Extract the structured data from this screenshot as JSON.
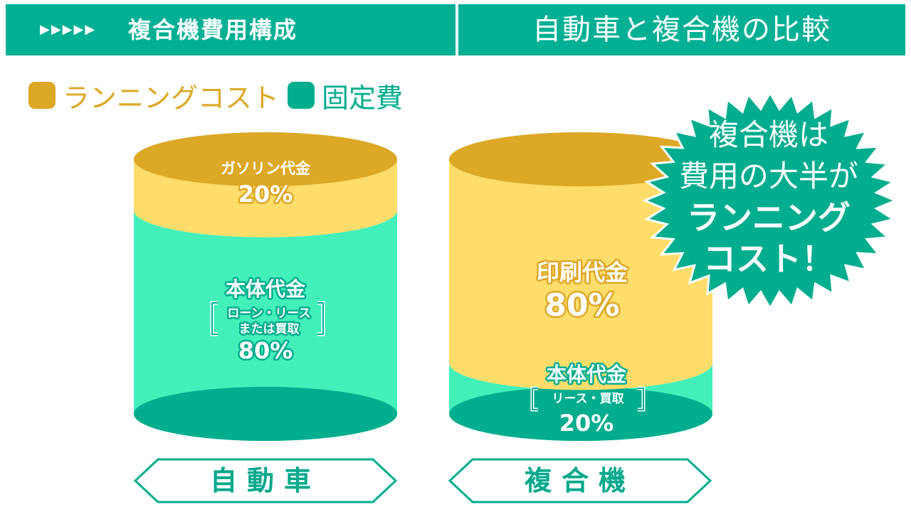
{
  "header": {
    "arrows": "▶▶▶▶▶",
    "section_title": "複合機費用構成",
    "right_title": "自動車と複合機の比較"
  },
  "colors": {
    "running_cost": "#dca826",
    "running_cost_light": "#ffdd6a",
    "fixed_cost": "#00ad8f",
    "fixed_cost_light": "#43f0b9",
    "header_bg": "#00b094"
  },
  "legend": {
    "running_cost_label": "ランニングコスト",
    "fixed_cost_label": "固定費"
  },
  "chart_data": {
    "type": "bar",
    "stacked": true,
    "categories": [
      "自動車",
      "複合機"
    ],
    "series": [
      {
        "name": "ランニングコスト",
        "values": [
          20,
          80
        ],
        "item_labels": [
          "ガソリン代金",
          "印刷代金"
        ],
        "value_labels": [
          "20%",
          "80%"
        ]
      },
      {
        "name": "固定費",
        "values": [
          80,
          20
        ],
        "item_labels": [
          "本体代金",
          "本体代金"
        ],
        "sub_labels": [
          [
            "ローン・リース",
            "または買取"
          ],
          [
            "リース・買取"
          ]
        ],
        "value_labels": [
          "80%",
          "20%"
        ]
      }
    ],
    "title": "",
    "xlabel": "",
    "ylabel": "",
    "ylim": [
      0,
      100
    ]
  },
  "callout": {
    "lines": [
      "複合機は",
      "費用の大半が",
      "ランニング",
      "コスト！"
    ]
  }
}
